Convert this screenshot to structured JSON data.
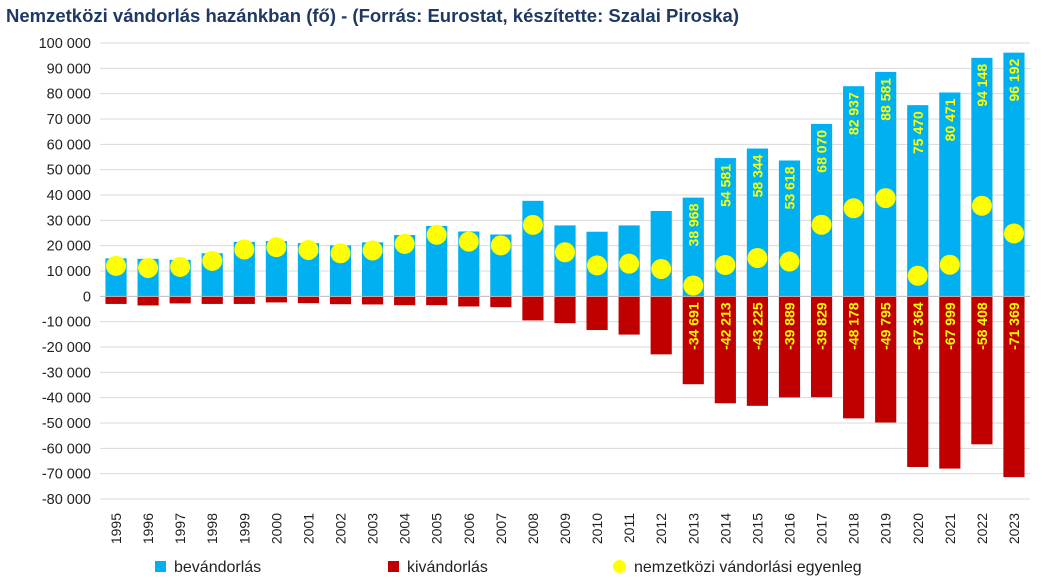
{
  "chart_data": {
    "type": "bar",
    "title": "Nemzetközi vándorlás hazánkban (fő) - (Forrás: Eurostat, készítette: Szalai Piroska)",
    "ylim": [
      -80000,
      100000
    ],
    "y_ticks": [
      100000,
      90000,
      80000,
      70000,
      60000,
      50000,
      40000,
      30000,
      20000,
      10000,
      0,
      -10000,
      -20000,
      -30000,
      -40000,
      -50000,
      -60000,
      -70000,
      -80000
    ],
    "y_tick_labels": [
      "100 000",
      "90 000",
      "80 000",
      "70 000",
      "60 000",
      "50 000",
      "40 000",
      "30 000",
      "20 000",
      "10 000",
      "0",
      "-10 000",
      "-20 000",
      "-30 000",
      "-40 000",
      "-50 000",
      "-60 000",
      "-70 000",
      "-80 000"
    ],
    "grid": true,
    "legend_position": "bottom",
    "categories": [
      "1995",
      "1996",
      "1997",
      "1998",
      "1999",
      "2000",
      "2001",
      "2002",
      "2003",
      "2004",
      "2005",
      "2006",
      "2007",
      "2008",
      "2009",
      "2010",
      "2011",
      "2012",
      "2013",
      "2014",
      "2015",
      "2016",
      "2017",
      "2018",
      "2019",
      "2020",
      "2021",
      "2022",
      "2023"
    ],
    "series": [
      {
        "name": "bevándorlás",
        "type": "bar",
        "color": "#00B0F0",
        "values": [
          15000,
          14800,
          14400,
          17000,
          21500,
          21800,
          21000,
          20100,
          21300,
          24200,
          27800,
          25600,
          24400,
          37700,
          28000,
          25500,
          28000,
          33700,
          38968,
          54581,
          58344,
          53618,
          68070,
          82937,
          88581,
          75470,
          80471,
          94148,
          96192
        ],
        "data_labels": [
          "",
          "",
          "",
          "",
          "",
          "",
          "",
          "",
          "",
          "",
          "",
          "",
          "",
          "",
          "",
          "",
          "",
          "",
          "38 968",
          "54 581",
          "58 344",
          "53 618",
          "68 070",
          "82 937",
          "88 581",
          "75 470",
          "80 471",
          "94 148",
          "96 192"
        ]
      },
      {
        "name": "kivándorlás",
        "type": "bar",
        "color": "#C00000",
        "values": [
          -3000,
          -3600,
          -2800,
          -3000,
          -3000,
          -2400,
          -2700,
          -3100,
          -3200,
          -3500,
          -3500,
          -4000,
          -4300,
          -9500,
          -10600,
          -13300,
          -15100,
          -22900,
          -34691,
          -42213,
          -43225,
          -39889,
          -39829,
          -48178,
          -49795,
          -67364,
          -67999,
          -58408,
          -71369
        ],
        "data_labels": [
          "",
          "",
          "",
          "",
          "",
          "",
          "",
          "",
          "",
          "",
          "",
          "",
          "",
          "",
          "",
          "",
          "",
          "",
          "-34 691",
          "-42 213",
          "-43 225",
          "-39 889",
          "-39 829",
          "-48 178",
          "-49 795",
          "-67 364",
          "-67 999",
          "-58 408",
          "-71 369"
        ]
      },
      {
        "name": "nemzetközi vándorlási egyenleg",
        "type": "scatter",
        "color": "#FFFF00",
        "values": [
          12000,
          11200,
          11600,
          14000,
          18500,
          19400,
          18300,
          17000,
          18100,
          20700,
          24300,
          21600,
          20100,
          28200,
          17400,
          12200,
          12900,
          10800,
          4277,
          12368,
          15119,
          13729,
          28241,
          34759,
          38786,
          8106,
          12472,
          35740,
          24823
        ]
      }
    ]
  }
}
